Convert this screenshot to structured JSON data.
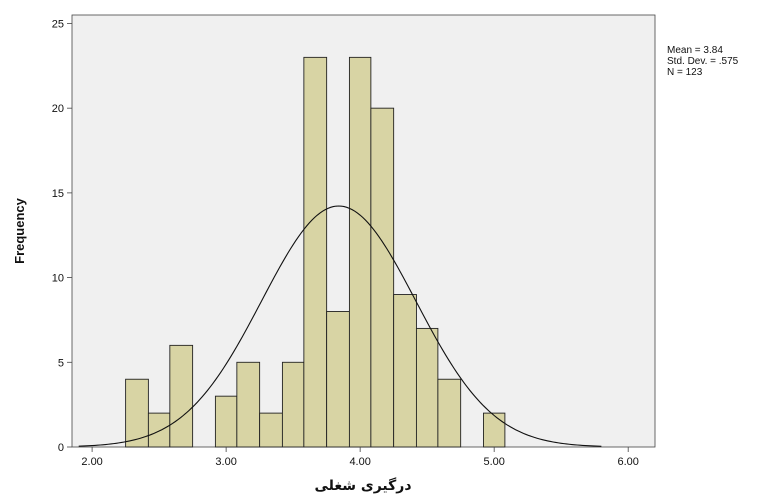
{
  "chart_data": {
    "type": "bar",
    "xlabel": "درگیری شغلی",
    "ylabel": "Frequency",
    "xlim": [
      1.85,
      6.2
    ],
    "ylim": [
      0,
      25.5
    ],
    "x_ticks": [
      "2.00",
      "3.00",
      "4.00",
      "5.00",
      "6.00"
    ],
    "x_tick_values": [
      2,
      3,
      4,
      5,
      6
    ],
    "y_ticks": [
      "0",
      "5",
      "10",
      "15",
      "20",
      "25"
    ],
    "y_tick_values": [
      0,
      5,
      10,
      15,
      20,
      25
    ],
    "grid": false,
    "bar_color": "#d8d4a4",
    "plot_background": "#f0f0f0",
    "bins": [
      {
        "start": 2.25,
        "end": 2.42,
        "count": 4
      },
      {
        "start": 2.42,
        "end": 2.58,
        "count": 2
      },
      {
        "start": 2.58,
        "end": 2.75,
        "count": 6
      },
      {
        "start": 2.75,
        "end": 2.92,
        "count": 0
      },
      {
        "start": 2.92,
        "end": 3.08,
        "count": 3
      },
      {
        "start": 3.08,
        "end": 3.25,
        "count": 5
      },
      {
        "start": 3.25,
        "end": 3.42,
        "count": 2
      },
      {
        "start": 3.42,
        "end": 3.58,
        "count": 5
      },
      {
        "start": 3.58,
        "end": 3.75,
        "count": 23
      },
      {
        "start": 3.75,
        "end": 3.92,
        "count": 8
      },
      {
        "start": 3.92,
        "end": 4.08,
        "count": 23
      },
      {
        "start": 4.08,
        "end": 4.25,
        "count": 20
      },
      {
        "start": 4.25,
        "end": 4.42,
        "count": 9
      },
      {
        "start": 4.42,
        "end": 4.58,
        "count": 7
      },
      {
        "start": 4.58,
        "end": 4.75,
        "count": 4
      },
      {
        "start": 4.75,
        "end": 4.92,
        "count": 0
      },
      {
        "start": 4.92,
        "end": 5.08,
        "count": 2
      }
    ],
    "normal_curve": {
      "mean": 3.84,
      "std_dev": 0.575,
      "n": 123,
      "bin_width": 0.1667
    },
    "stats_text": [
      "Mean = 3.84",
      "Std. Dev. = .575",
      "N = 123"
    ]
  }
}
